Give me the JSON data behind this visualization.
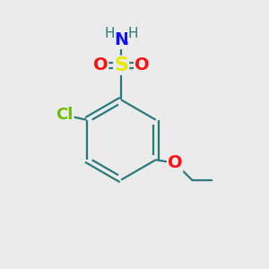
{
  "background_color": "#ebebeb",
  "bond_color": "#2a7a7a",
  "atom_colors": {
    "S": "#e8e800",
    "O": "#ff1010",
    "N": "#1010ff",
    "Cl": "#6abf00",
    "H": "#2a7a7a"
  },
  "figsize": [
    3.0,
    3.0
  ],
  "dpi": 100
}
